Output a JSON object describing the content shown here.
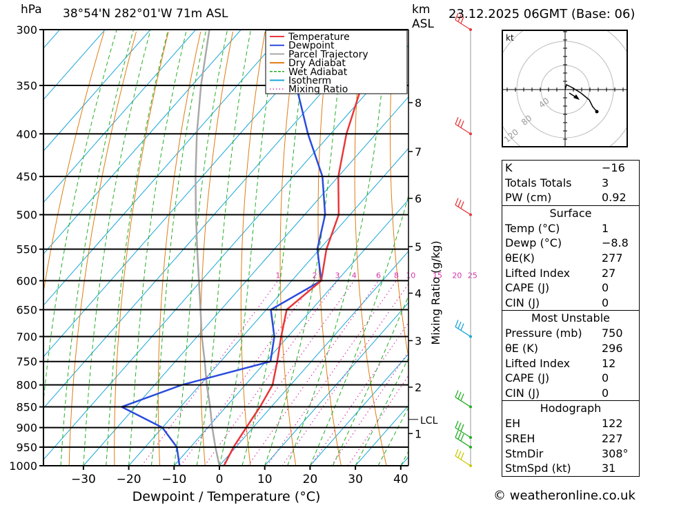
{
  "header": {
    "unit_left": "hPa",
    "location": "38°54'N 282°01'W 71m ASL",
    "unit_km": "km",
    "unit_asl": "ASL",
    "date": "23.12.2025 06GMT (Base: 06)"
  },
  "chart_data": {
    "type": "skew-t",
    "pressure_levels": [
      300,
      350,
      400,
      450,
      500,
      550,
      600,
      650,
      700,
      750,
      800,
      850,
      900,
      950,
      1000
    ],
    "pressure_labels": [
      "300",
      "350",
      "400",
      "450",
      "500",
      "550",
      "600",
      "650",
      "700",
      "750",
      "800",
      "850",
      "900",
      "950",
      "1000"
    ],
    "x_ticks": [
      -30,
      -20,
      -10,
      0,
      10,
      20,
      30,
      40
    ],
    "x_tick_labels": [
      "−30",
      "−20",
      "−10",
      "0",
      "10",
      "20",
      "30",
      "40"
    ],
    "xlabel": "Dewpoint / Temperature (°C)",
    "ylabel_right": "Mixing Ratio (g/kg)",
    "km_ticks": [
      {
        "label": "8",
        "p": 367
      },
      {
        "label": "7",
        "p": 420
      },
      {
        "label": "6",
        "p": 478
      },
      {
        "label": "5",
        "p": 546
      },
      {
        "label": "4",
        "p": 621
      },
      {
        "label": "3",
        "p": 708
      },
      {
        "label": "2",
        "p": 805
      },
      {
        "label": "1",
        "p": 915
      }
    ],
    "lcl": {
      "label": "LCL",
      "p": 880
    },
    "mixing_ratio_values": [
      1,
      2,
      3,
      4,
      6,
      8,
      10,
      15,
      20,
      25
    ],
    "mixing_ratio_labels": [
      "1",
      "2",
      "3",
      "4",
      "6",
      "8",
      "10",
      "15",
      "20",
      "25"
    ],
    "legend": [
      {
        "name": "Temperature",
        "color": "#e8373a",
        "style": "solid"
      },
      {
        "name": "Dewpoint",
        "color": "#2a4bdc",
        "style": "solid"
      },
      {
        "name": "Parcel Trajectory",
        "color": "#a8a8a8",
        "style": "solid"
      },
      {
        "name": "Dry Adiabat",
        "color": "#e07b10",
        "style": "solid"
      },
      {
        "name": "Wet Adiabat",
        "color": "#1fae1f",
        "style": "dashed"
      },
      {
        "name": "Isotherm",
        "color": "#19a6d8",
        "style": "solid"
      },
      {
        "name": "Mixing Ratio",
        "color": "#d632a8",
        "style": "dotted"
      }
    ],
    "temperature": [
      {
        "p": 1000,
        "t": 1
      },
      {
        "p": 950,
        "t": -0.5
      },
      {
        "p": 900,
        "t": -1.5
      },
      {
        "p": 850,
        "t": -2.5
      },
      {
        "p": 800,
        "t": -4
      },
      {
        "p": 750,
        "t": -7.5
      },
      {
        "p": 700,
        "t": -11.5
      },
      {
        "p": 650,
        "t": -15.5
      },
      {
        "p": 600,
        "t": -13.5
      },
      {
        "p": 550,
        "t": -18.5
      },
      {
        "p": 500,
        "t": -22.5
      },
      {
        "p": 450,
        "t": -30
      },
      {
        "p": 400,
        "t": -36.5
      },
      {
        "p": 350,
        "t": -42.5
      },
      {
        "p": 300,
        "t": -50
      }
    ],
    "dewpoint": [
      {
        "p": 1000,
        "t": -8.8
      },
      {
        "p": 950,
        "t": -13
      },
      {
        "p": 900,
        "t": -20
      },
      {
        "p": 850,
        "t": -33
      },
      {
        "p": 800,
        "t": -24
      },
      {
        "p": 750,
        "t": -9
      },
      {
        "p": 700,
        "t": -13
      },
      {
        "p": 650,
        "t": -19
      },
      {
        "p": 600,
        "t": -13.5
      },
      {
        "p": 550,
        "t": -20.5
      },
      {
        "p": 500,
        "t": -25.5
      },
      {
        "p": 450,
        "t": -33.5
      },
      {
        "p": 400,
        "t": -45
      },
      {
        "p": 350,
        "t": -57
      },
      {
        "p": 300,
        "t": -58.5
      }
    ],
    "parcel": [
      {
        "p": 1000,
        "t": 0
      },
      {
        "p": 950,
        "t": -4.5
      },
      {
        "p": 900,
        "t": -9
      },
      {
        "p": 850,
        "t": -13.5
      },
      {
        "p": 800,
        "t": -18.5
      },
      {
        "p": 750,
        "t": -23.5
      },
      {
        "p": 700,
        "t": -29
      },
      {
        "p": 650,
        "t": -34.5
      },
      {
        "p": 600,
        "t": -40.5
      },
      {
        "p": 550,
        "t": -47
      },
      {
        "p": 500,
        "t": -54
      },
      {
        "p": 450,
        "t": -61.5
      },
      {
        "p": 400,
        "t": -69.5
      },
      {
        "p": 350,
        "t": -78
      },
      {
        "p": 300,
        "t": -87
      }
    ],
    "wind_barbs": [
      {
        "p": 300,
        "color": "#e8373a"
      },
      {
        "p": 400,
        "color": "#e8373a"
      },
      {
        "p": 500,
        "color": "#e8373a"
      },
      {
        "p": 700,
        "color": "#19a6d8"
      },
      {
        "p": 850,
        "color": "#1fae1f"
      },
      {
        "p": 925,
        "color": "#1fae1f"
      },
      {
        "p": 950,
        "color": "#1fae1f"
      },
      {
        "p": 1000,
        "color": "#c8c800"
      }
    ]
  },
  "hodograph": {
    "unit": "kt",
    "ring_labels": [
      "40",
      "80",
      "120"
    ]
  },
  "indices": {
    "top": [
      {
        "label": "K",
        "value": "−16"
      },
      {
        "label": "Totals Totals",
        "value": "3"
      },
      {
        "label": "PW (cm)",
        "value": "0.92"
      }
    ],
    "surface": {
      "title": "Surface",
      "rows": [
        {
          "label": "Temp (°C)",
          "value": "1"
        },
        {
          "label": "Dewp (°C)",
          "value": "−8.8"
        },
        {
          "label": "θE(K)",
          "value": "277"
        },
        {
          "label": "Lifted Index",
          "value": "27"
        },
        {
          "label": "CAPE (J)",
          "value": "0"
        },
        {
          "label": "CIN (J)",
          "value": "0"
        }
      ]
    },
    "most_unstable": {
      "title": "Most Unstable",
      "rows": [
        {
          "label": "Pressure (mb)",
          "value": "750"
        },
        {
          "label": "θE (K)",
          "value": "296"
        },
        {
          "label": "Lifted Index",
          "value": "12"
        },
        {
          "label": "CAPE (J)",
          "value": "0"
        },
        {
          "label": "CIN (J)",
          "value": "0"
        }
      ]
    },
    "hodograph": {
      "title": "Hodograph",
      "rows": [
        {
          "label": "EH",
          "value": "122"
        },
        {
          "label": "SREH",
          "value": "227"
        },
        {
          "label": "StmDir",
          "value": "308°"
        },
        {
          "label": "StmSpd (kt)",
          "value": "31"
        }
      ]
    }
  },
  "credit": "© weatheronline.co.uk"
}
